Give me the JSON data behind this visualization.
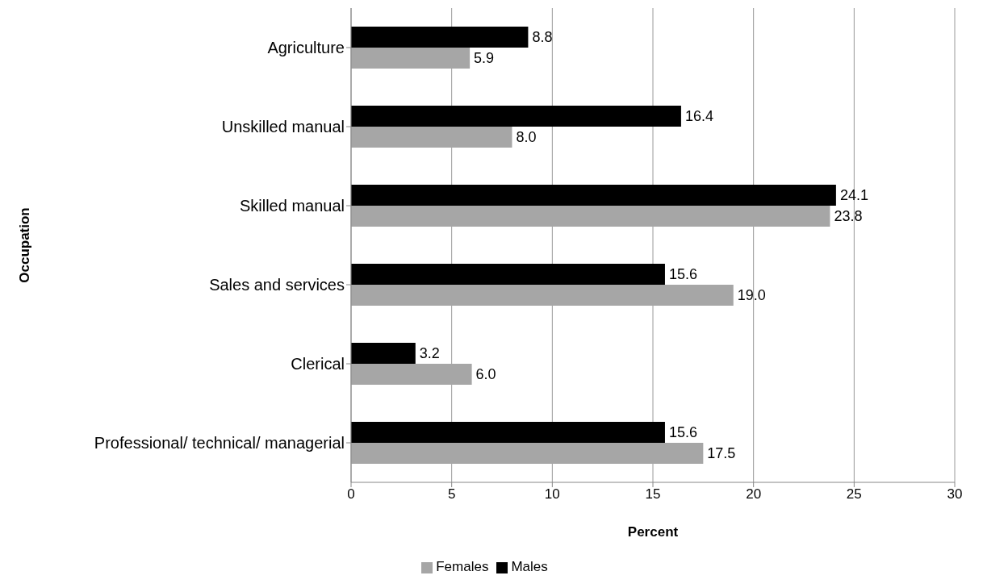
{
  "chart_data": {
    "type": "bar",
    "orientation": "horizontal",
    "xlabel": "Percent",
    "ylabel": "Occupation",
    "categories": [
      "Agriculture",
      "Unskilled manual",
      "Skilled manual",
      "Sales and services",
      "Clerical",
      "Professional/ technical/ managerial"
    ],
    "series": [
      {
        "name": "Males",
        "color": "#000000",
        "values": [
          8.8,
          16.4,
          24.1,
          15.6,
          3.2,
          15.6
        ],
        "value_labels": [
          "8.8",
          "16.4",
          "24.1",
          "15.6",
          "3.2",
          "15.6"
        ]
      },
      {
        "name": "Females",
        "color": "#a6a6a6",
        "values": [
          5.9,
          8.0,
          23.8,
          19.0,
          6.0,
          17.5
        ],
        "value_labels": [
          "5.9",
          "8.0",
          "23.8",
          "19.0",
          "6.0",
          "17.5"
        ]
      }
    ],
    "xlim": [
      0,
      30
    ],
    "xticks": [
      0,
      5,
      10,
      15,
      20,
      25,
      30
    ],
    "grid": "x",
    "legend": "bottom"
  }
}
